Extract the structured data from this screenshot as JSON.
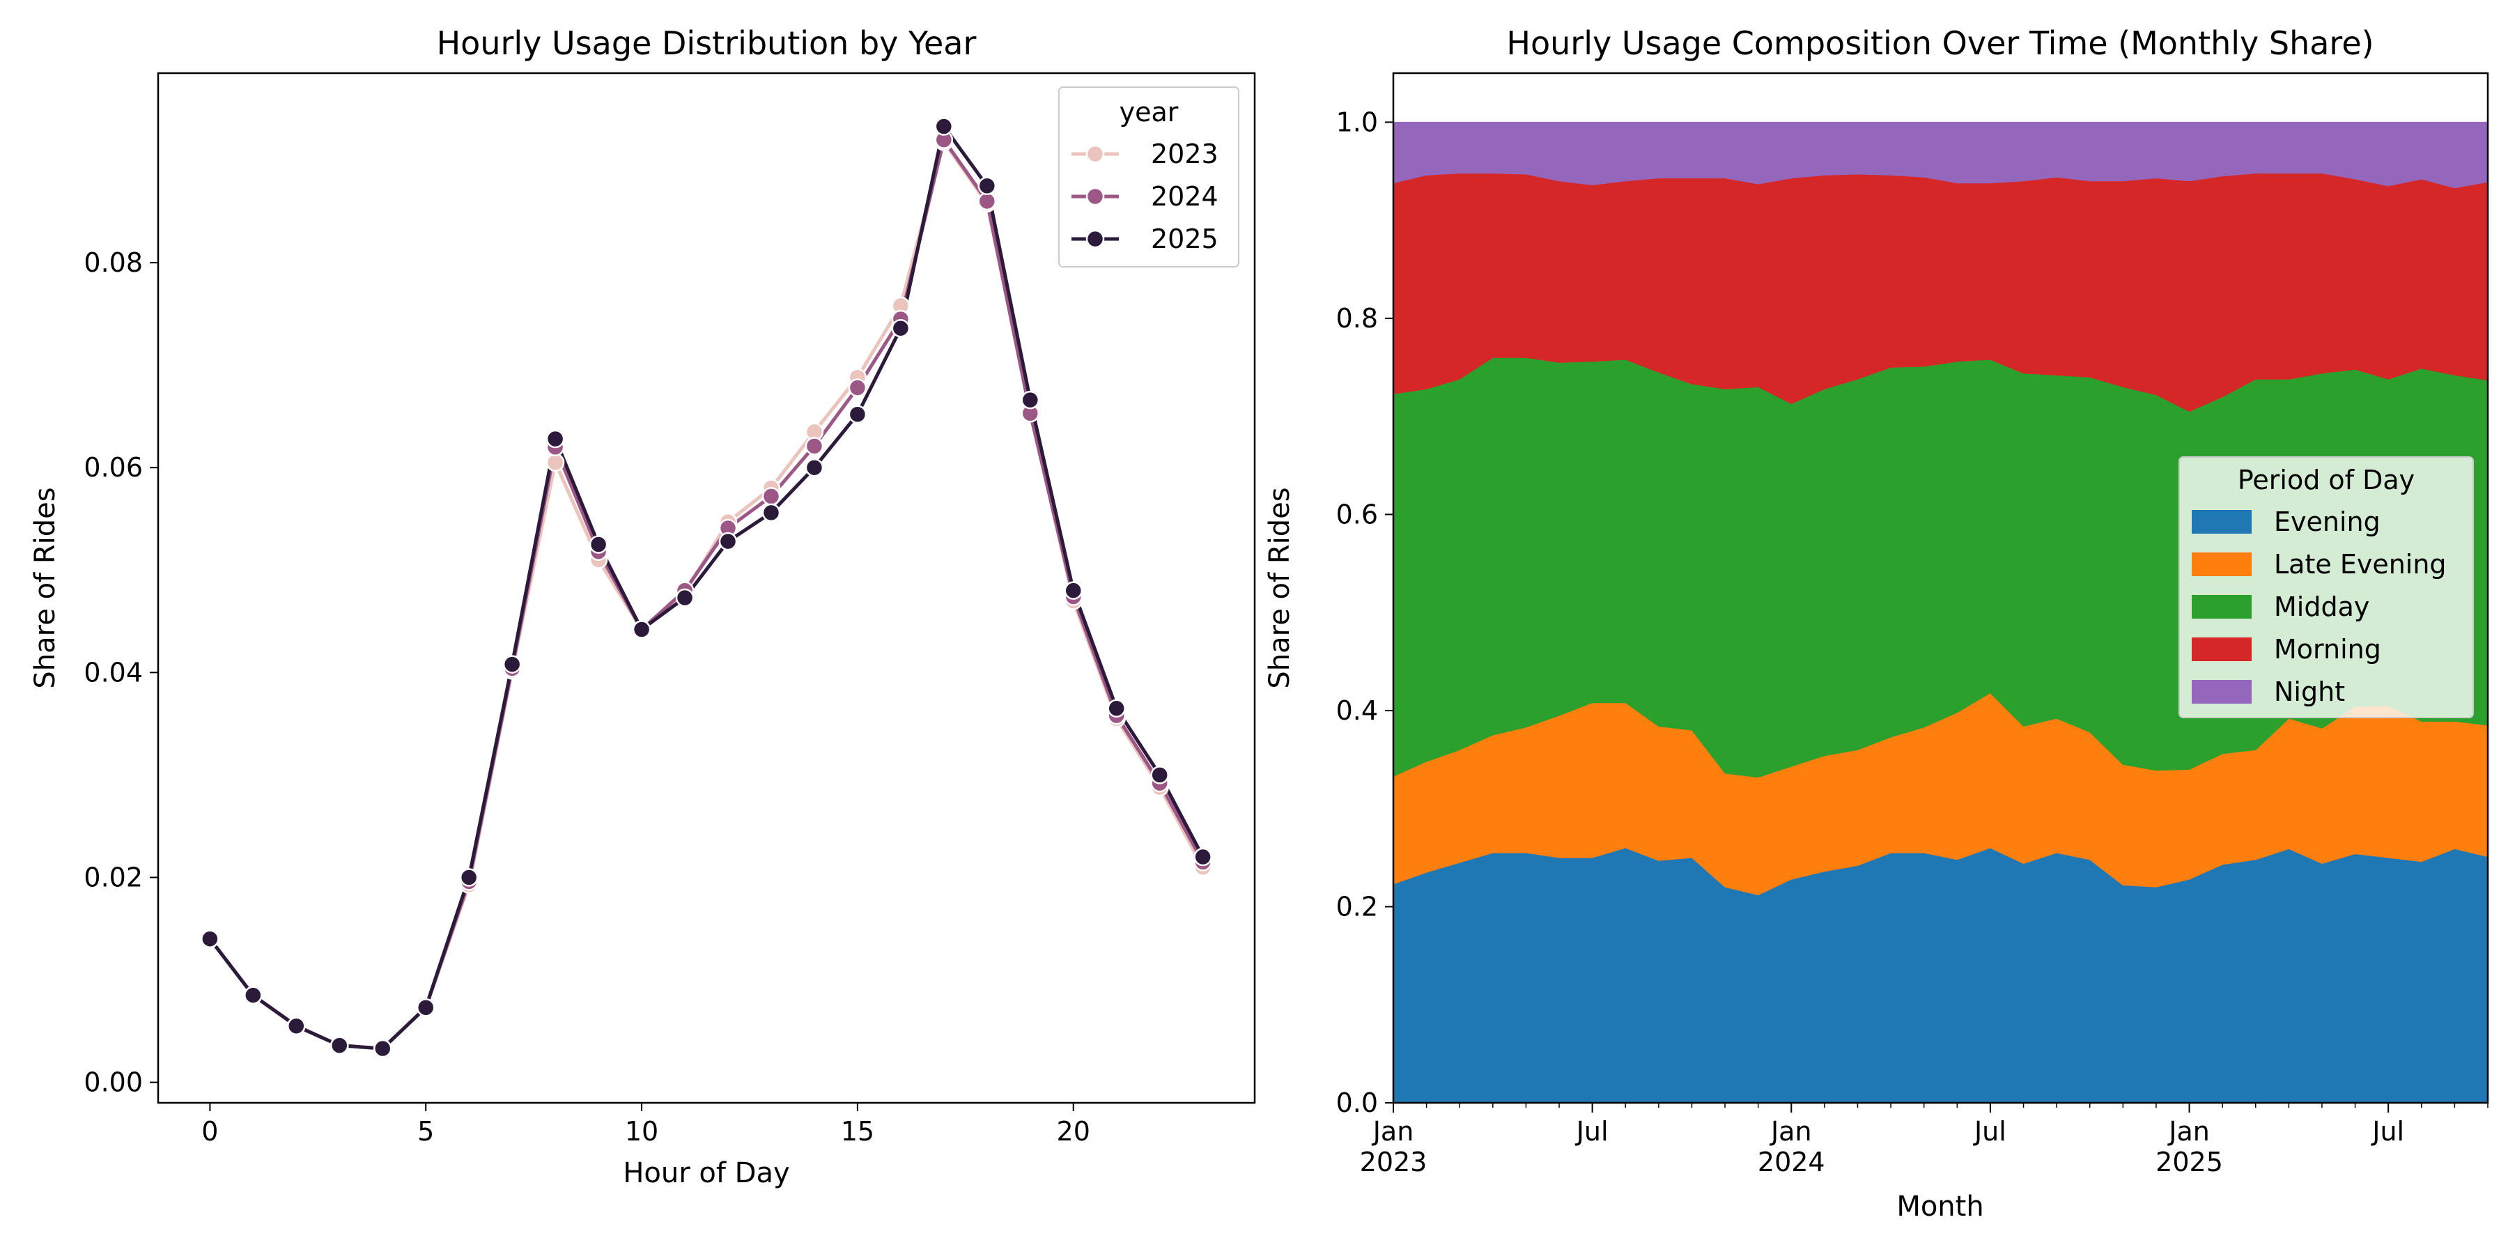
{
  "chart_data": [
    {
      "type": "line",
      "title": "Hourly Usage Distribution by Year",
      "xlabel": "Hour of Day",
      "ylabel": "Share of Rides",
      "xlim": [
        -1.2,
        24.2
      ],
      "ylim": [
        -0.002,
        0.0985
      ],
      "xticks": [
        0,
        5,
        10,
        15,
        20
      ],
      "yticks": [
        0.0,
        0.02,
        0.04,
        0.06,
        0.08
      ],
      "ytick_labels": [
        "0.00",
        "0.02",
        "0.04",
        "0.06",
        "0.08"
      ],
      "x": [
        0,
        1,
        2,
        3,
        4,
        5,
        6,
        7,
        8,
        9,
        10,
        11,
        12,
        13,
        14,
        15,
        16,
        17,
        18,
        19,
        20,
        21,
        22,
        23
      ],
      "legend": {
        "title": "year",
        "position": "upper right"
      },
      "series": [
        {
          "name": "2023",
          "color": "#ebc4bd",
          "values": [
            0.014,
            0.0085,
            0.0055,
            0.0036,
            0.0033,
            0.0073,
            0.0193,
            0.0402,
            0.0605,
            0.051,
            0.0442,
            0.0478,
            0.0547,
            0.058,
            0.0635,
            0.0688,
            0.0758,
            0.0918,
            0.0858,
            0.0655,
            0.047,
            0.0355,
            0.0288,
            0.021
          ]
        },
        {
          "name": "2024",
          "color": "#9c5787",
          "values": [
            0.014,
            0.0085,
            0.0055,
            0.0036,
            0.0033,
            0.0073,
            0.0196,
            0.0404,
            0.062,
            0.0518,
            0.0442,
            0.048,
            0.0541,
            0.0572,
            0.0621,
            0.0678,
            0.0745,
            0.092,
            0.086,
            0.0653,
            0.0474,
            0.0358,
            0.0292,
            0.0215
          ]
        },
        {
          "name": "2025",
          "color": "#2b1a3a",
          "values": [
            0.014,
            0.0085,
            0.0055,
            0.0036,
            0.0033,
            0.0073,
            0.02,
            0.0408,
            0.0628,
            0.0525,
            0.0442,
            0.0473,
            0.0528,
            0.0556,
            0.06,
            0.0652,
            0.0736,
            0.0933,
            0.0875,
            0.0666,
            0.048,
            0.0365,
            0.03,
            0.022
          ]
        }
      ]
    },
    {
      "type": "area",
      "stacked": true,
      "title": "Hourly Usage Composition Over Time (Monthly Share)",
      "xlabel": "Month",
      "ylabel": "Share of Rides",
      "xlim": [
        0,
        33
      ],
      "ylim": [
        0.0,
        1.05
      ],
      "yticks": [
        0.0,
        0.2,
        0.4,
        0.6,
        0.8,
        1.0
      ],
      "ytick_labels": [
        "0.0",
        "0.2",
        "0.4",
        "0.6",
        "0.8",
        "1.0"
      ],
      "months": [
        "2023-01",
        "2023-02",
        "2023-03",
        "2023-04",
        "2023-05",
        "2023-06",
        "2023-07",
        "2023-08",
        "2023-09",
        "2023-10",
        "2023-11",
        "2023-12",
        "2024-01",
        "2024-02",
        "2024-03",
        "2024-04",
        "2024-05",
        "2024-06",
        "2024-07",
        "2024-08",
        "2024-09",
        "2024-10",
        "2024-11",
        "2024-12",
        "2025-01",
        "2025-02",
        "2025-03",
        "2025-04",
        "2025-05",
        "2025-06",
        "2025-07",
        "2025-08",
        "2025-09",
        "2025-10"
      ],
      "major_ticks": [
        {
          "index": 0,
          "line1": "Jan",
          "line2": "2023"
        },
        {
          "index": 6,
          "line1": "Jul",
          "line2": ""
        },
        {
          "index": 12,
          "line1": "Jan",
          "line2": "2024"
        },
        {
          "index": 18,
          "line1": "Jul",
          "line2": ""
        },
        {
          "index": 24,
          "line1": "Jan",
          "line2": "2025"
        },
        {
          "index": 30,
          "line1": "Jul",
          "line2": ""
        }
      ],
      "legend": {
        "title": "Period of Day",
        "position": "center right"
      },
      "series": [
        {
          "name": "Evening",
          "color": "#1f77b4",
          "values": [
            0.223,
            0.235,
            0.245,
            0.255,
            0.255,
            0.25,
            0.25,
            0.26,
            0.247,
            0.25,
            0.22,
            0.212,
            0.228,
            0.236,
            0.242,
            0.255,
            0.255,
            0.248,
            0.26,
            0.244,
            0.255,
            0.248,
            0.222,
            0.22,
            0.228,
            0.243,
            0.248,
            0.259,
            0.244,
            0.254,
            0.25,
            0.246,
            0.259,
            0.251
          ]
        },
        {
          "name": "Late Evening",
          "color": "#ff7f0e",
          "values": [
            0.11,
            0.113,
            0.115,
            0.12,
            0.128,
            0.145,
            0.158,
            0.148,
            0.137,
            0.13,
            0.116,
            0.12,
            0.115,
            0.118,
            0.118,
            0.118,
            0.128,
            0.15,
            0.158,
            0.14,
            0.137,
            0.13,
            0.123,
            0.119,
            0.112,
            0.113,
            0.112,
            0.133,
            0.138,
            0.15,
            0.155,
            0.143,
            0.13,
            0.134
          ]
        },
        {
          "name": "Midday",
          "color": "#2ca02c",
          "values": [
            0.39,
            0.38,
            0.378,
            0.385,
            0.377,
            0.36,
            0.348,
            0.35,
            0.361,
            0.353,
            0.392,
            0.398,
            0.37,
            0.374,
            0.378,
            0.377,
            0.368,
            0.358,
            0.34,
            0.36,
            0.35,
            0.362,
            0.385,
            0.383,
            0.365,
            0.364,
            0.378,
            0.346,
            0.362,
            0.344,
            0.333,
            0.36,
            0.353,
            0.352
          ]
        },
        {
          "name": "Morning",
          "color": "#d62728",
          "values": [
            0.215,
            0.218,
            0.21,
            0.188,
            0.187,
            0.185,
            0.18,
            0.182,
            0.198,
            0.21,
            0.215,
            0.207,
            0.23,
            0.218,
            0.209,
            0.196,
            0.193,
            0.182,
            0.18,
            0.196,
            0.202,
            0.2,
            0.21,
            0.221,
            0.235,
            0.225,
            0.21,
            0.21,
            0.204,
            0.194,
            0.197,
            0.193,
            0.191,
            0.202
          ]
        },
        {
          "name": "Night",
          "color": "#9467bd",
          "values": [
            0.062,
            0.054,
            0.052,
            0.052,
            0.053,
            0.06,
            0.064,
            0.06,
            0.057,
            0.057,
            0.057,
            0.063,
            0.057,
            0.054,
            0.053,
            0.054,
            0.056,
            0.062,
            0.062,
            0.06,
            0.056,
            0.06,
            0.06,
            0.057,
            0.06,
            0.055,
            0.052,
            0.052,
            0.052,
            0.058,
            0.065,
            0.058,
            0.067,
            0.061
          ]
        }
      ]
    }
  ]
}
